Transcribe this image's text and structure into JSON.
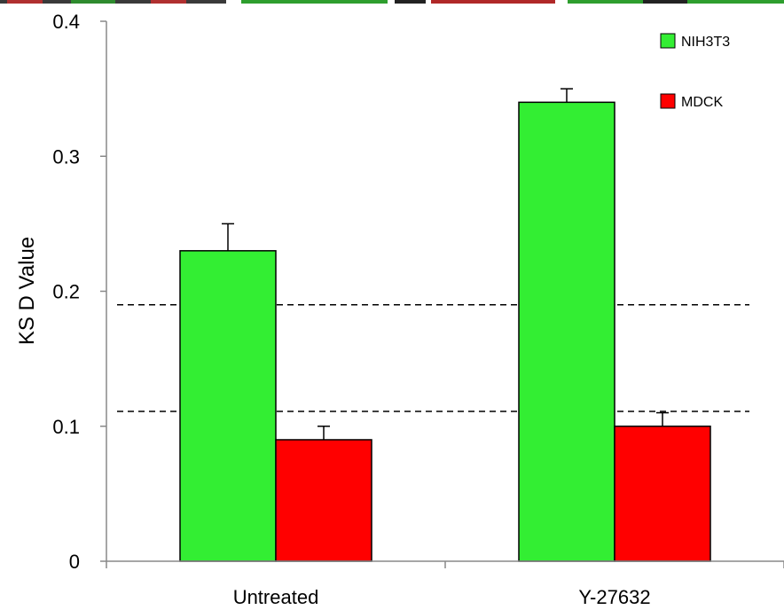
{
  "chart_data": {
    "type": "bar",
    "categories": [
      "Untreated",
      "Y-27632"
    ],
    "series": [
      {
        "name": "NIH3T3",
        "color": "#33ee33",
        "values": [
          0.23,
          0.34
        ],
        "errors": [
          0.02,
          0.01
        ]
      },
      {
        "name": "MDCK",
        "color": "#ff0000",
        "values": [
          0.09,
          0.1
        ],
        "errors": [
          0.01,
          0.01
        ]
      }
    ],
    "title": "",
    "xlabel": "",
    "ylabel": "KS D Value",
    "ylim": [
      0,
      0.4
    ],
    "yticks": [
      0,
      0.1,
      0.2,
      0.3,
      0.4
    ],
    "ytick_labels": [
      "0",
      "0.1",
      "0.2",
      "0.3",
      "0.4"
    ],
    "reference_lines": [
      0.19,
      0.111
    ],
    "grid": false,
    "legend_position": "top-right"
  }
}
